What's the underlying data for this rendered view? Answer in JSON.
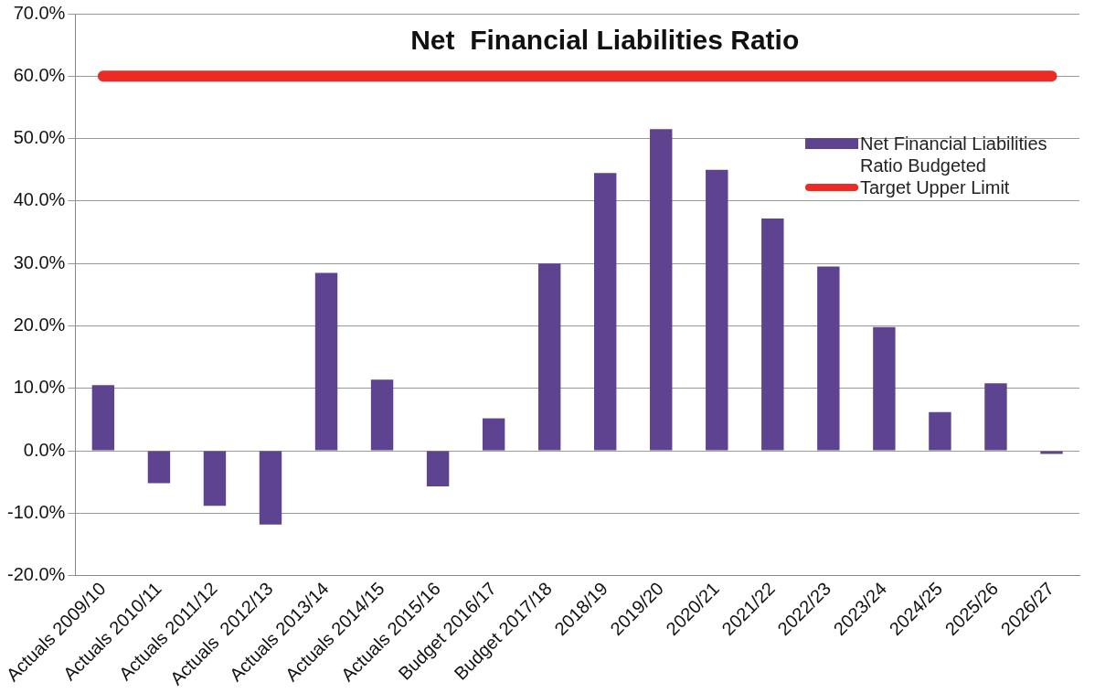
{
  "chart_data": {
    "type": "bar",
    "title": "Net  Financial Liabilities Ratio",
    "categories": [
      "Actuals 2009/10",
      "Actuals 2010/11",
      "Actuals 2011/12",
      "Actuals  2012/13",
      "Actuals 2013/14",
      "Actuals 2014/15",
      "Actuals 2015/16",
      "Budget 2016/17",
      "Budget 2017/18",
      "2018/19",
      "2019/20",
      "2020/21",
      "2021/22",
      "2022/23",
      "2023/24",
      "2024/25",
      "2025/26",
      "2026/27"
    ],
    "series": [
      {
        "name": "Net Financial Liabilities Ratio Budgeted",
        "color": "#5e4391",
        "values": [
          10.5,
          -5.2,
          -8.8,
          -11.8,
          28.5,
          11.4,
          -5.7,
          5.2,
          30.0,
          44.5,
          51.5,
          45.0,
          37.2,
          29.5,
          19.8,
          6.2,
          10.8,
          -0.5
        ]
      },
      {
        "name": "Target Upper Limit",
        "type": "line",
        "color": "#ee2a24",
        "values": [
          60,
          60,
          60,
          60,
          60,
          60,
          60,
          60,
          60,
          60,
          60,
          60,
          60,
          60,
          60,
          60,
          60,
          60
        ]
      }
    ],
    "ylim": [
      -20,
      70
    ],
    "yticks": [
      {
        "value": -20,
        "label": "-20.0%"
      },
      {
        "value": -10,
        "label": "-10.0%"
      },
      {
        "value": 0,
        "label": "0.0%"
      },
      {
        "value": 10,
        "label": "10.0%"
      },
      {
        "value": 20,
        "label": "20.0%"
      },
      {
        "value": 30,
        "label": "30.0%"
      },
      {
        "value": 40,
        "label": "40.0%"
      },
      {
        "value": 50,
        "label": "50.0%"
      },
      {
        "value": 60,
        "label": "60.0%"
      },
      {
        "value": 70,
        "label": "70.0%"
      }
    ],
    "grid": "y",
    "legend": "right",
    "marker": "none"
  }
}
